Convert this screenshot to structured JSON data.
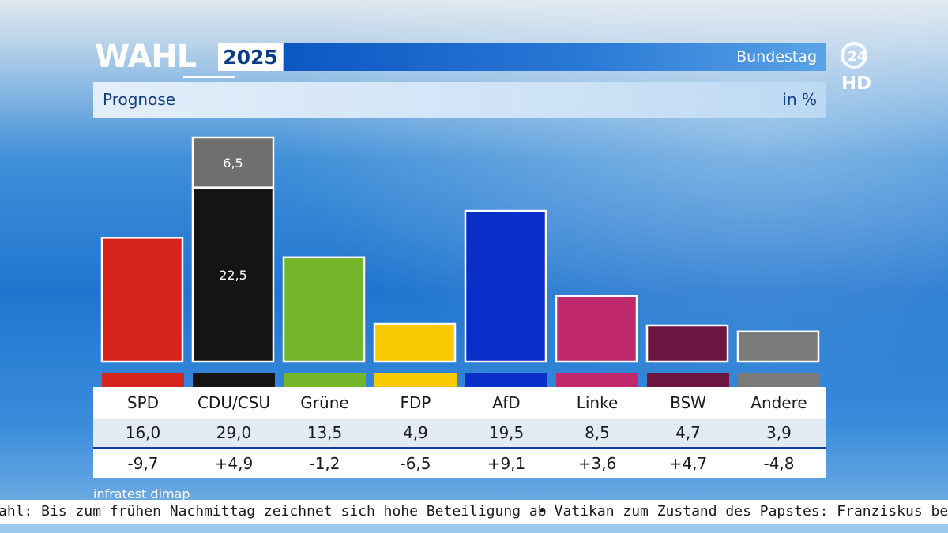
{
  "header": {
    "logo_word": "WAHL",
    "logo_year": "2025",
    "title": "Bundestag",
    "subtitle": "Prognose",
    "unit": "in %",
    "channel_number": "24",
    "channel_hd": "HD"
  },
  "chart_data": {
    "type": "bar",
    "title": "Prognose",
    "ylabel": "in %",
    "ylim": [
      0,
      32
    ],
    "categories": [
      "SPD",
      "CDU/CSU",
      "Grüne",
      "FDP",
      "AfD",
      "Linke",
      "BSW",
      "Andere"
    ],
    "values": [
      16.0,
      29.0,
      13.5,
      4.9,
      19.5,
      8.5,
      4.7,
      3.9
    ],
    "value_labels": [
      "16,0",
      "29,0",
      "13,5",
      "4,9",
      "19,5",
      "8,5",
      "4,7",
      "3,9"
    ],
    "changes": [
      "-9,7",
      "+4,9",
      "-1,2",
      "-6,5",
      "+9,1",
      "+3,6",
      "+4,7",
      "-4,8"
    ],
    "colors": [
      "#d8241e",
      "#141414",
      "#74b62a",
      "#f7c900",
      "#0a2ec8",
      "#c02a6c",
      "#6c1540",
      "#7a7a7a"
    ],
    "stacked_segments": {
      "category": "CDU/CSU",
      "segments": [
        {
          "value": 22.5,
          "label": "22,5",
          "color": "#141414"
        },
        {
          "value": 6.5,
          "label": "6,5",
          "color": "#6f6f6f"
        }
      ]
    },
    "source": "infratest dimap"
  },
  "ticker": {
    "item1": "ahl: Bis zum frühen Nachmittag zeichnet sich hohe Beteiligung ab",
    "item2": "• Vatikan zum Zustand des Papstes: Franziskus bekon"
  }
}
